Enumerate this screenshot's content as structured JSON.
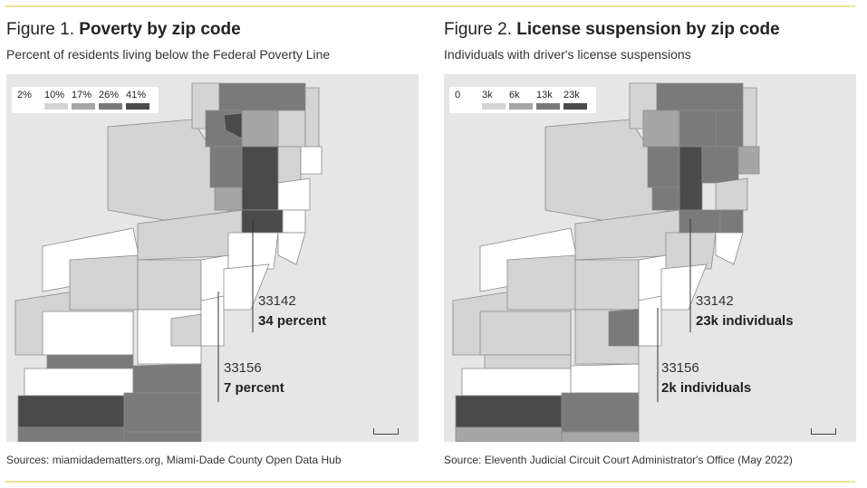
{
  "figures": [
    {
      "title_prefix": "Figure 1.",
      "title_bold": "Poverty by zip code",
      "subtitle": "Percent of residents living below the Federal Poverty Line",
      "legend": {
        "labels": [
          "2%",
          "10%",
          "17%",
          "26%",
          "41%"
        ],
        "colors": [
          "#ffffff",
          "#d4d4d4",
          "#a6a6a6",
          "#7a7a7a",
          "#4a4a4a"
        ]
      },
      "callouts": [
        {
          "zip": "33142",
          "value": "34 percent"
        },
        {
          "zip": "33156",
          "value": "7 percent"
        }
      ],
      "source": "Sources: miamidadematters.org, Miami-Dade County Open Data Hub"
    },
    {
      "title_prefix": "Figure 2.",
      "title_bold": "License suspension by zip code",
      "subtitle": "Individuals with driver's license suspensions",
      "legend": {
        "labels": [
          "0",
          "3k",
          "6k",
          "13k",
          "23k"
        ],
        "colors": [
          "#ffffff",
          "#d4d4d4",
          "#a6a6a6",
          "#7a7a7a",
          "#4a4a4a"
        ]
      },
      "callouts": [
        {
          "zip": "33142",
          "value": "23k individuals"
        },
        {
          "zip": "33156",
          "value": "2k individuals"
        }
      ],
      "source": "Source: Eleventh Judicial Circuit Court Administrator's Office (May 2022)"
    }
  ],
  "colors": {
    "rule": "#eee39a",
    "water": "#e6e6e6",
    "border": "#8a8a8a"
  }
}
